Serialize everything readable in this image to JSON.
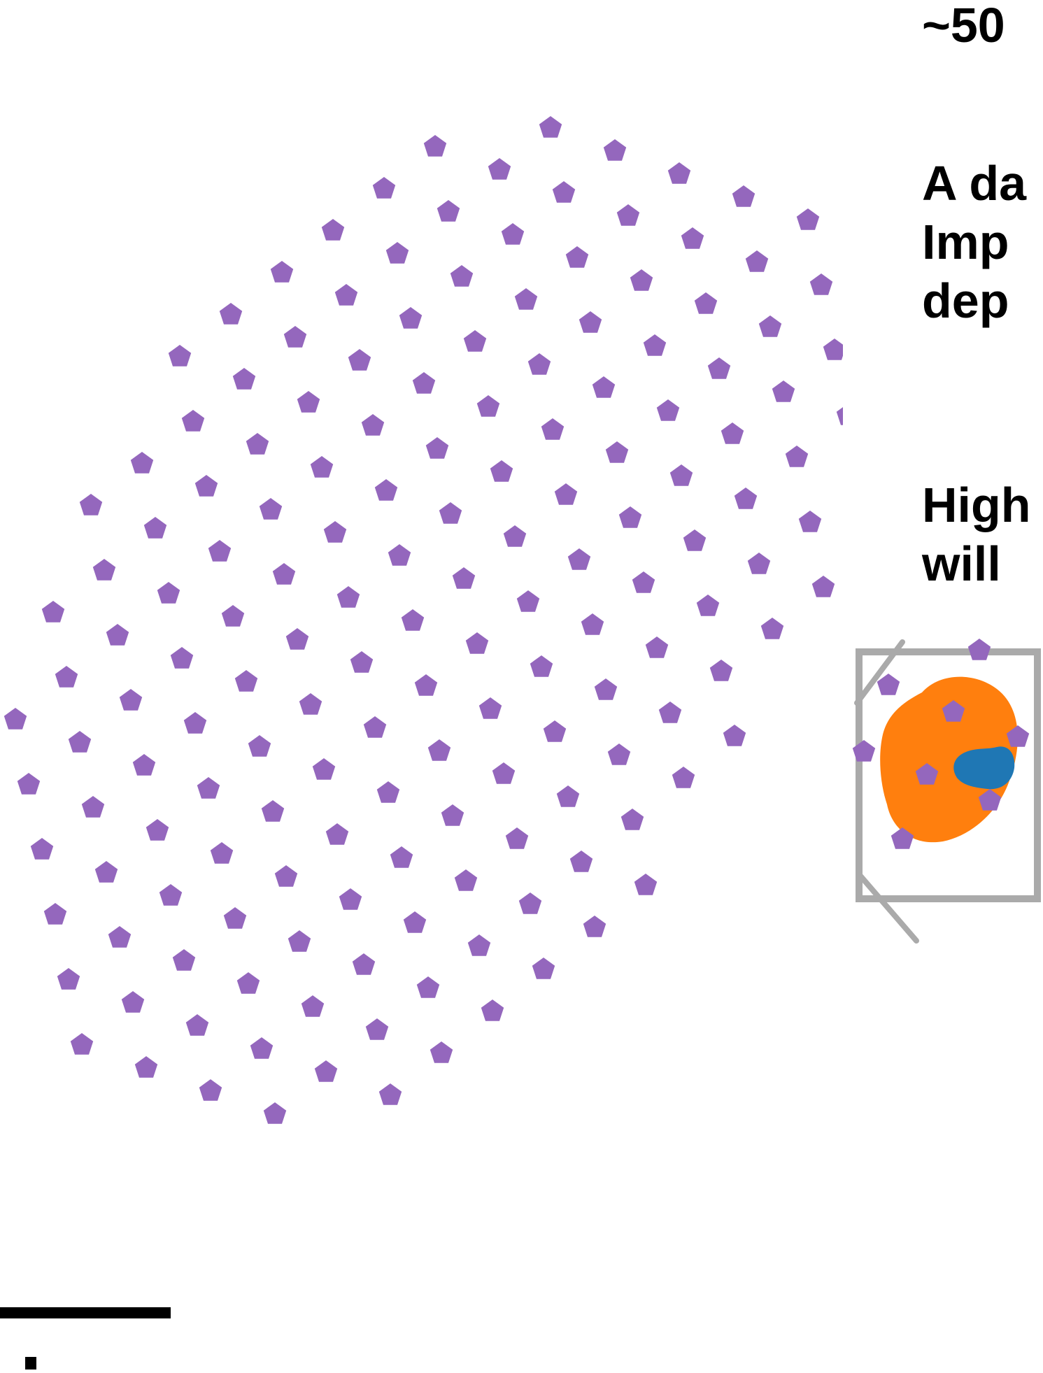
{
  "heading": "~50",
  "paragraph_1": [
    "A da",
    "Imp",
    "dep"
  ],
  "paragraph_2": [
    "High",
    "will"
  ],
  "colors": {
    "spot": "#9467bd",
    "cell": "#ff7f0e",
    "nucleus": "#1f77b4",
    "zoom_box": "#aaaaaa",
    "scale_bar": "#000000"
  }
}
